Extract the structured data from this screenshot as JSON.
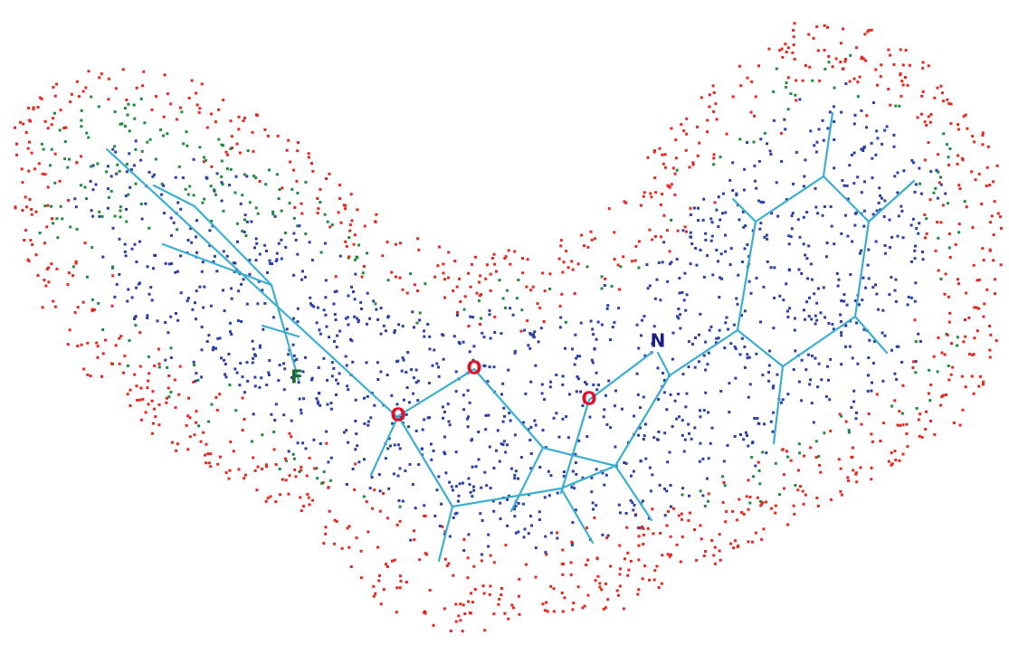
{
  "atoms": [
    {
      "label": "F"
    },
    {
      "label": "O"
    },
    {
      "label": "O"
    },
    {
      "label": "O"
    },
    {
      "label": "N"
    }
  ]
}
